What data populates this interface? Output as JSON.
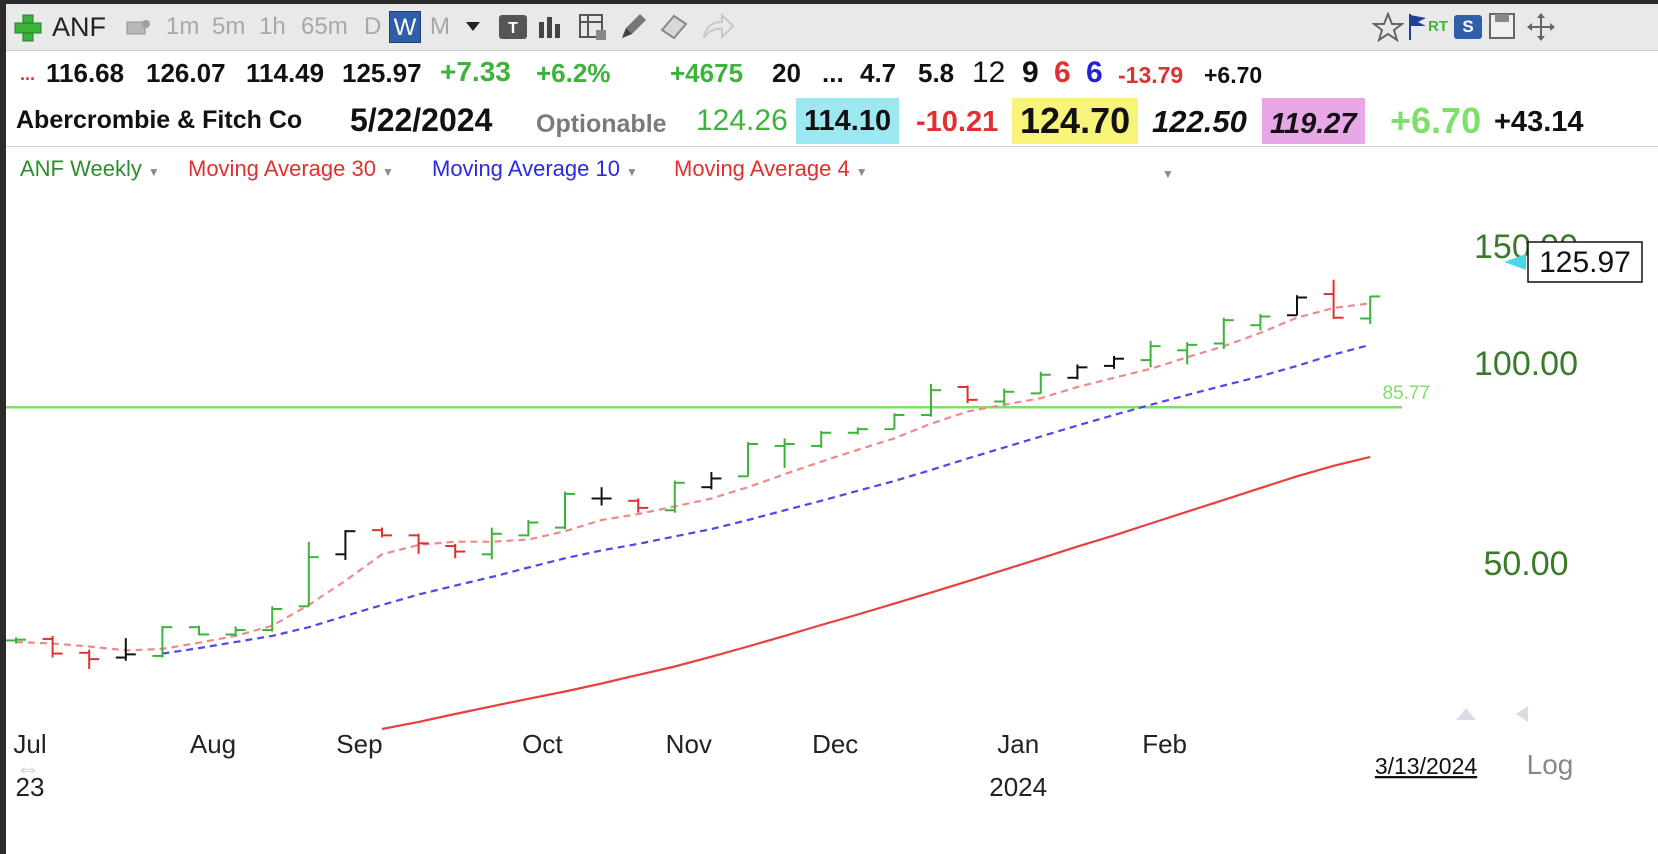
{
  "toolbar": {
    "symbol": "ANF",
    "intervals": [
      "1m",
      "5m",
      "1h",
      "65m",
      "D",
      "W",
      "M"
    ],
    "active_interval": "W",
    "icons": [
      "add-symbol-icon",
      "tool-icon",
      "text-icon",
      "bar-chart-icon",
      "table-icon",
      "pencil-icon",
      "eraser-icon",
      "share-arrow-icon",
      "star-icon",
      "flag-icon",
      "rt-icon",
      "s-icon",
      "save-icon",
      "move-icon"
    ],
    "rt_label": "RT",
    "s_label": "S"
  },
  "quote_row1": {
    "prefix": "...",
    "open": "116.68",
    "high": "126.07",
    "low": "114.49",
    "close": "125.97",
    "change": "+7.33",
    "change_pct": "+6.2%",
    "volume_change": "+4675",
    "v1": "20",
    "dots": "...",
    "v2": "4.7",
    "v3": "5.8",
    "v4": "12",
    "v5": "9",
    "v6": "6",
    "v7": "6",
    "v8": "-13.79",
    "v9": "+6.70"
  },
  "quote_row2": {
    "company": "Abercrombie & Fitch Co",
    "date": "5/22/2024",
    "optionable": "Optionable",
    "v1": "124.26",
    "v2": "114.10",
    "v3": "-10.21",
    "v4": "124.70",
    "v5": "122.50",
    "v6": "119.27",
    "v7": "+6.70",
    "v8": "+43.14"
  },
  "studies": {
    "s1": "ANF Weekly",
    "s2": "Moving Average 30",
    "s3": "Moving Average 10",
    "s4": "Moving Average 4"
  },
  "colors": {
    "up": "#3cb43c",
    "down": "#e03030",
    "neutral": "#111111",
    "ma30": "#e84040",
    "ma10": "#4a4ae8",
    "ma4": "#f08a8a",
    "hline": "#7ee06a",
    "price_label": "#3a7a2a"
  },
  "chart_data": {
    "type": "ohlc",
    "title": "ANF Weekly",
    "y_scale": "log",
    "ylim": [
      28,
      170
    ],
    "y_ticks": [
      50,
      100,
      150
    ],
    "y_tick_labels": [
      "50.00",
      "100.00",
      "150.00"
    ],
    "x_labels": [
      {
        "label": "Jul",
        "bar": 0
      },
      {
        "label": "Aug",
        "bar": 5
      },
      {
        "label": "Sep",
        "bar": 9
      },
      {
        "label": "Oct",
        "bar": 14
      },
      {
        "label": "Nov",
        "bar": 18
      },
      {
        "label": "Dec",
        "bar": 22
      },
      {
        "label": "Jan",
        "bar": 27
      },
      {
        "label": "Feb",
        "bar": 31
      }
    ],
    "year_labels": [
      {
        "label": "23",
        "bar": 0
      },
      {
        "label": "2024",
        "bar": 27
      }
    ],
    "date_label": "3/13/2024",
    "log_label": "Log",
    "last_price_label": "125.97",
    "hline": {
      "value": 85.77,
      "label": "85.77"
    },
    "bars": [
      {
        "o": 38.2,
        "h": 38.6,
        "l": 37.8,
        "c": 38.3,
        "d": "up"
      },
      {
        "o": 38.4,
        "h": 38.8,
        "l": 36.0,
        "c": 36.5,
        "d": "down"
      },
      {
        "o": 36.6,
        "h": 37.0,
        "l": 34.6,
        "c": 35.8,
        "d": "down"
      },
      {
        "o": 36.0,
        "h": 38.5,
        "l": 35.6,
        "c": 36.4,
        "d": "neutral"
      },
      {
        "o": 36.2,
        "h": 40.2,
        "l": 36.0,
        "c": 40.0,
        "d": "up"
      },
      {
        "o": 40.0,
        "h": 40.2,
        "l": 38.9,
        "c": 39.0,
        "d": "up"
      },
      {
        "o": 39.0,
        "h": 40.1,
        "l": 38.8,
        "c": 39.6,
        "d": "up"
      },
      {
        "o": 39.6,
        "h": 43.0,
        "l": 39.4,
        "c": 42.6,
        "d": "up"
      },
      {
        "o": 43.0,
        "h": 53.8,
        "l": 43.0,
        "c": 51.0,
        "d": "up"
      },
      {
        "o": 51.5,
        "h": 56.0,
        "l": 50.5,
        "c": 55.8,
        "d": "neutral"
      },
      {
        "o": 56.0,
        "h": 56.5,
        "l": 54.6,
        "c": 55.0,
        "d": "down"
      },
      {
        "o": 55.0,
        "h": 55.3,
        "l": 51.6,
        "c": 53.5,
        "d": "down"
      },
      {
        "o": 53.0,
        "h": 53.4,
        "l": 50.8,
        "c": 52.0,
        "d": "down"
      },
      {
        "o": 51.5,
        "h": 56.5,
        "l": 50.6,
        "c": 55.3,
        "d": "up"
      },
      {
        "o": 55.0,
        "h": 58.0,
        "l": 54.8,
        "c": 57.5,
        "d": "up"
      },
      {
        "o": 56.5,
        "h": 64.0,
        "l": 56.2,
        "c": 63.5,
        "d": "up"
      },
      {
        "o": 62.5,
        "h": 65.0,
        "l": 61.0,
        "c": 62.5,
        "d": "neutral"
      },
      {
        "o": 62.0,
        "h": 62.5,
        "l": 59.5,
        "c": 60.5,
        "d": "down"
      },
      {
        "o": 60.0,
        "h": 66.5,
        "l": 59.5,
        "c": 66.0,
        "d": "up"
      },
      {
        "o": 65.0,
        "h": 68.5,
        "l": 64.5,
        "c": 67.0,
        "d": "neutral"
      },
      {
        "o": 67.5,
        "h": 76.0,
        "l": 67.5,
        "c": 75.5,
        "d": "up"
      },
      {
        "o": 75.0,
        "h": 77.0,
        "l": 69.5,
        "c": 75.5,
        "d": "up"
      },
      {
        "o": 75.0,
        "h": 79.0,
        "l": 74.5,
        "c": 78.5,
        "d": "up"
      },
      {
        "o": 78.5,
        "h": 80.0,
        "l": 78.0,
        "c": 79.5,
        "d": "up"
      },
      {
        "o": 79.5,
        "h": 84.0,
        "l": 79.5,
        "c": 83.5,
        "d": "up"
      },
      {
        "o": 83.5,
        "h": 93.0,
        "l": 83.0,
        "c": 91.0,
        "d": "up"
      },
      {
        "o": 92.0,
        "h": 92.5,
        "l": 87.0,
        "c": 88.0,
        "d": "down"
      },
      {
        "o": 87.5,
        "h": 91.5,
        "l": 86.5,
        "c": 90.5,
        "d": "up"
      },
      {
        "o": 90.0,
        "h": 97.0,
        "l": 90.0,
        "c": 96.0,
        "d": "up"
      },
      {
        "o": 95.0,
        "h": 99.5,
        "l": 94.5,
        "c": 98.5,
        "d": "neutral"
      },
      {
        "o": 99.0,
        "h": 102.5,
        "l": 98.0,
        "c": 101.5,
        "d": "neutral"
      },
      {
        "o": 101.0,
        "h": 108.0,
        "l": 98.5,
        "c": 106.0,
        "d": "up"
      },
      {
        "o": 104.5,
        "h": 107.5,
        "l": 99.5,
        "c": 106.5,
        "d": "up"
      },
      {
        "o": 107.0,
        "h": 117.0,
        "l": 105.0,
        "c": 116.0,
        "d": "up"
      },
      {
        "o": 114.0,
        "h": 118.5,
        "l": 112.0,
        "c": 117.5,
        "d": "up"
      },
      {
        "o": 118.0,
        "h": 126.5,
        "l": 118.0,
        "c": 125.5,
        "d": "neutral"
      },
      {
        "o": 127.0,
        "h": 133.5,
        "l": 116.5,
        "c": 117.0,
        "d": "down"
      },
      {
        "o": 116.68,
        "h": 126.07,
        "l": 114.49,
        "c": 125.97,
        "d": "up"
      }
    ],
    "ma4": [
      38.0,
      37.8,
      37.4,
      36.9,
      37.1,
      37.9,
      38.8,
      40.2,
      43.2,
      47.0,
      51.5,
      53.2,
      53.8,
      53.8,
      54.2,
      55.8,
      58.0,
      59.2,
      60.8,
      62.5,
      65.0,
      68.0,
      71.0,
      74.0,
      77.0,
      81.0,
      84.5,
      86.5,
      88.5,
      92.0,
      95.0,
      98.0,
      102.0,
      106.0,
      111.0,
      117.0,
      121.0,
      123.0
    ],
    "ma10": [
      null,
      null,
      null,
      null,
      36.5,
      37.2,
      38.0,
      38.8,
      40.0,
      41.6,
      43.2,
      44.8,
      46.2,
      47.6,
      49.2,
      50.8,
      52.2,
      53.4,
      54.8,
      56.2,
      58.0,
      60.0,
      62.0,
      64.2,
      66.4,
      69.0,
      71.8,
      74.6,
      77.5,
      80.5,
      83.5,
      86.5,
      89.5,
      92.5,
      95.5,
      99.0,
      103.0,
      106.5
    ],
    "ma30": [
      null,
      null,
      null,
      null,
      null,
      null,
      null,
      null,
      null,
      null,
      28.1,
      28.8,
      29.6,
      30.4,
      31.2,
      32.0,
      32.9,
      33.9,
      34.9,
      36.1,
      37.4,
      38.8,
      40.3,
      41.8,
      43.4,
      45.1,
      46.9,
      48.8,
      50.8,
      52.9,
      55.0,
      57.3,
      59.7,
      62.2,
      64.8,
      67.5,
      70.0,
      72.2
    ]
  }
}
